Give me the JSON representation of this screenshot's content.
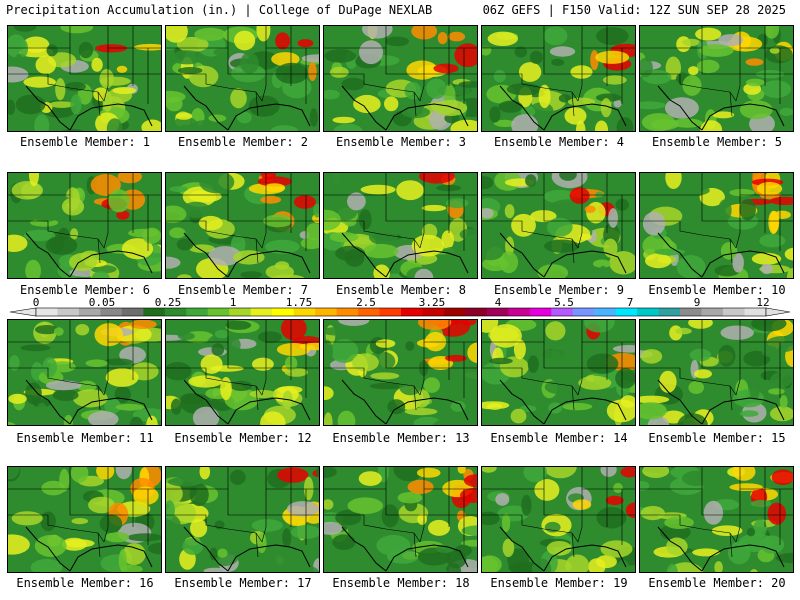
{
  "header": {
    "left": "Precipitation Accumulation (in.) | College of DuPage NEXLAB",
    "right": "06Z GEFS | F150 Valid: 12Z SUN SEP 28 2025"
  },
  "panels": [
    {
      "label": "Ensemble Member: 1"
    },
    {
      "label": "Ensemble Member: 2"
    },
    {
      "label": "Ensemble Member: 3"
    },
    {
      "label": "Ensemble Member: 4"
    },
    {
      "label": "Ensemble Member: 5"
    },
    {
      "label": "Ensemble Member: 6"
    },
    {
      "label": "Ensemble Member: 7"
    },
    {
      "label": "Ensemble Member: 8"
    },
    {
      "label": "Ensemble Member: 9"
    },
    {
      "label": "Ensemble Member: 10"
    },
    {
      "label": "Ensemble Member: 11"
    },
    {
      "label": "Ensemble Member: 12"
    },
    {
      "label": "Ensemble Member: 13"
    },
    {
      "label": "Ensemble Member: 14"
    },
    {
      "label": "Ensemble Member: 15"
    },
    {
      "label": "Ensemble Member: 16"
    },
    {
      "label": "Ensemble Member: 17"
    },
    {
      "label": "Ensemble Member: 18"
    },
    {
      "label": "Ensemble Member: 19"
    },
    {
      "label": "Ensemble Member: 20"
    }
  ],
  "colorbar": {
    "tick_labels": [
      "0",
      "0.05",
      "0.25",
      "1",
      "1.75",
      "2.5",
      "3.25",
      "4",
      "5.5",
      "7",
      "9",
      "12"
    ],
    "colors": [
      "#e6e6e6",
      "#c8c8c8",
      "#a8a8a8",
      "#888888",
      "#6e6e6e",
      "#1e6e1e",
      "#2e8b2e",
      "#3ea83a",
      "#66c22e",
      "#a6d62a",
      "#e6f01e",
      "#ffff00",
      "#ffd700",
      "#ffb400",
      "#ff8c00",
      "#ff6400",
      "#ff3c00",
      "#e60000",
      "#c80000",
      "#a00000",
      "#8c0028",
      "#a0005a",
      "#c80096",
      "#e600dc",
      "#b45aff",
      "#7896ff",
      "#4ab4ff",
      "#00e6ff",
      "#00c8c8",
      "#32a0a0",
      "#8c8c8c",
      "#a8a8a8",
      "#c8c8c8",
      "#e0e0e0"
    ]
  }
}
